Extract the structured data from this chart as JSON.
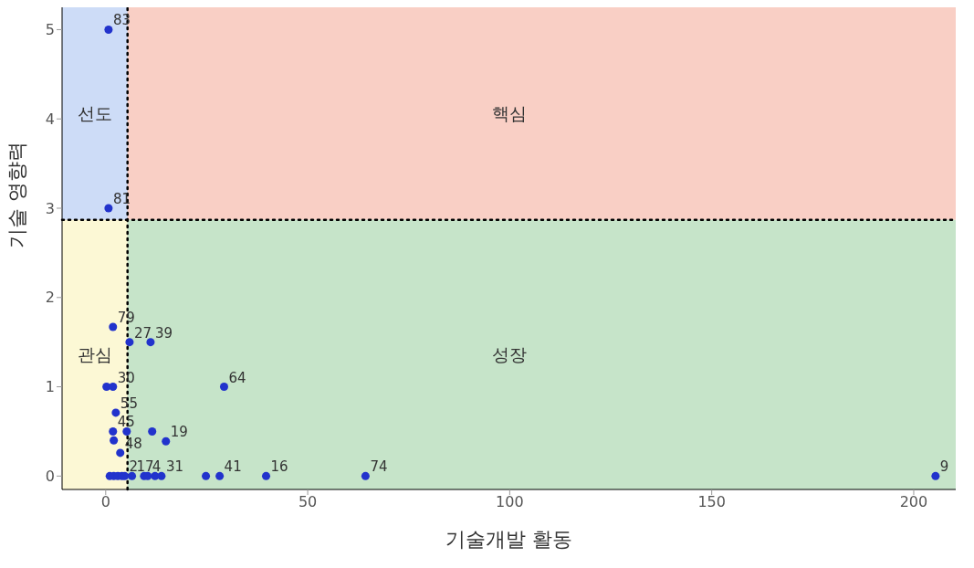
{
  "chart_data": {
    "type": "scatter",
    "xlabel": "기술개발 활동",
    "ylabel": "기술 영향력",
    "xlim": [
      -10.8,
      210.4
    ],
    "ylim": [
      -0.15,
      5.25
    ],
    "xticks": [
      0,
      50,
      100,
      150,
      200
    ],
    "yticks": [
      0,
      1,
      2,
      3,
      4,
      5
    ],
    "grid": false,
    "marker": "circle",
    "series": [
      {
        "color": "#2233cc",
        "x": [
          0.7,
          0.7,
          1.8,
          5.9,
          11.1,
          0.2,
          1.8,
          29.3,
          2.5,
          1.8,
          5.2,
          11.5,
          2.0,
          14.9,
          3.6,
          1,
          2,
          3,
          4,
          4.7,
          6.5,
          9.5,
          10.4,
          12.2,
          13.8,
          24.8,
          28.2,
          39.7,
          64.3,
          205.4
        ],
        "values": [
          5,
          3,
          1.67,
          1.5,
          1.5,
          1,
          1,
          1,
          0.71,
          0.5,
          0.5,
          0.5,
          0.4,
          0.39,
          0.26,
          0,
          0,
          0,
          0,
          0,
          0,
          0,
          0,
          0,
          0,
          0,
          0,
          0,
          0,
          0
        ]
      }
    ],
    "ref_lines": [
      {
        "axis": "x",
        "value": 5.4,
        "line_style": "dotted",
        "color": "#000000"
      },
      {
        "axis": "y",
        "value": 2.87,
        "line_style": "dotted",
        "color": "#000000"
      }
    ],
    "bands": [
      {
        "axis": "y",
        "from": 2.87,
        "to": 5.25,
        "label": "핵심",
        "color": "#f9cfc5"
      },
      {
        "axis": "y",
        "from": -0.15,
        "to": 2.87,
        "label": "성장",
        "color": "#c6e4c9"
      },
      {
        "axis": "x",
        "from": -10.8,
        "to": 5.4,
        "label": "선도",
        "color": "#cddcf7"
      },
      {
        "axis": "x",
        "from": -10.8,
        "to": 5.4,
        "label": "관심",
        "color": "#fcf8d5"
      }
    ],
    "annotations": [
      {
        "text": "83",
        "x": 0.7,
        "y": 5
      },
      {
        "text": "81",
        "x": 0.7,
        "y": 3
      },
      {
        "text": "79",
        "x": 1.8,
        "y": 1.67
      },
      {
        "text": "27",
        "x": 5.9,
        "y": 1.5
      },
      {
        "text": "39",
        "x": 11.1,
        "y": 1.5
      },
      {
        "text": "30",
        "x": 1.8,
        "y": 1
      },
      {
        "text": "64",
        "x": 29.3,
        "y": 1
      },
      {
        "text": "55",
        "x": 2.5,
        "y": 0.71
      },
      {
        "text": "45",
        "x": 1.8,
        "y": 0.5
      },
      {
        "text": "19",
        "x": 14.9,
        "y": 0.39
      },
      {
        "text": "48",
        "x": 3.6,
        "y": 0.26
      },
      {
        "text": "2",
        "x": 4.7,
        "y": 0
      },
      {
        "text": "17",
        "x": 6.5,
        "y": 0
      },
      {
        "text": "4",
        "x": 10.4,
        "y": 0
      },
      {
        "text": "31",
        "x": 13.8,
        "y": 0
      },
      {
        "text": "41",
        "x": 28.2,
        "y": 0
      },
      {
        "text": "16",
        "x": 39.7,
        "y": 0
      },
      {
        "text": "74",
        "x": 64.3,
        "y": 0
      },
      {
        "text": "9",
        "x": 205.4,
        "y": 0
      }
    ]
  }
}
